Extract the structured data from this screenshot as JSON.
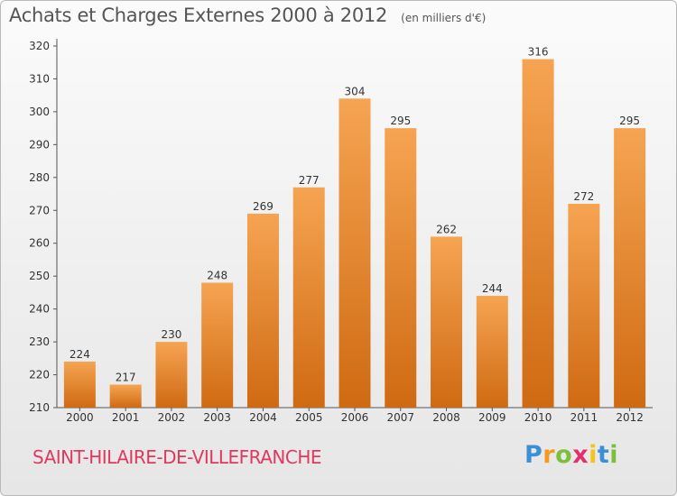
{
  "header": {
    "title": "Achats et Charges Externes 2000 à 2012",
    "subtitle": "(en milliers d'€)"
  },
  "footer": {
    "commune": "SAINT-HILAIRE-DE-VILLEFRANCHE",
    "brand": "Proxiti"
  },
  "colors": {
    "bar_top": "#f6a452",
    "bar_bottom": "#cf6a12",
    "commune_text": "#e0395e",
    "axis_text": "#333333"
  },
  "chart_data": {
    "type": "bar",
    "title": "Achats et Charges Externes 2000 à 2012",
    "subtitle": "(en milliers d'€)",
    "categories": [
      "2000",
      "2001",
      "2002",
      "2003",
      "2004",
      "2005",
      "2006",
      "2007",
      "2008",
      "2009",
      "2010",
      "2011",
      "2012"
    ],
    "values": [
      224,
      217,
      230,
      248,
      269,
      277,
      304,
      295,
      262,
      244,
      316,
      272,
      295
    ],
    "ylim": [
      210,
      320
    ],
    "yticks": [
      210,
      220,
      230,
      240,
      250,
      260,
      270,
      280,
      290,
      300,
      310,
      320
    ],
    "grid": false,
    "legend": "none"
  }
}
